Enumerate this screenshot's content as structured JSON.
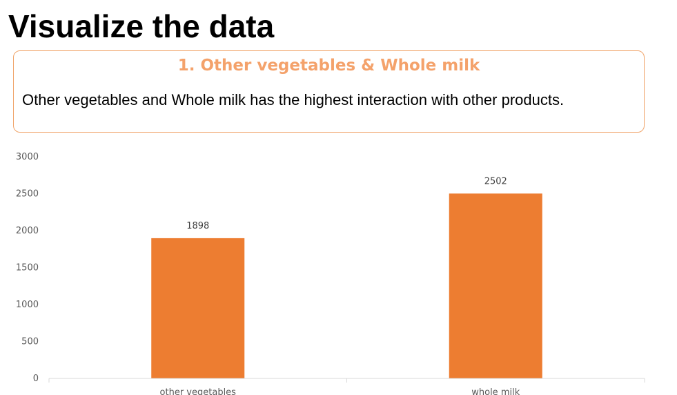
{
  "slide": {
    "title": "Visualize the data"
  },
  "callout": {
    "heading": "1. Other vegetables & Whole milk",
    "body": "Other vegetables and Whole milk has the highest interaction with other products."
  },
  "colors": {
    "bar": "#ed7d31",
    "callout_border": "#f0a46a",
    "callout_heading": "#f4a26b",
    "axis": "#d9d9d9",
    "tick_text": "#595959"
  },
  "chart_data": {
    "type": "bar",
    "categories": [
      "other vegetables",
      "whole milk"
    ],
    "values": [
      1898,
      2502
    ],
    "data_labels": [
      "1898",
      "2502"
    ],
    "title": "",
    "xlabel": "",
    "ylabel": "",
    "ylim": [
      0,
      3000
    ],
    "yticks": [
      "0",
      "500",
      "1000",
      "1500",
      "2000",
      "2500",
      "3000"
    ],
    "grid": false,
    "legend": "none"
  }
}
